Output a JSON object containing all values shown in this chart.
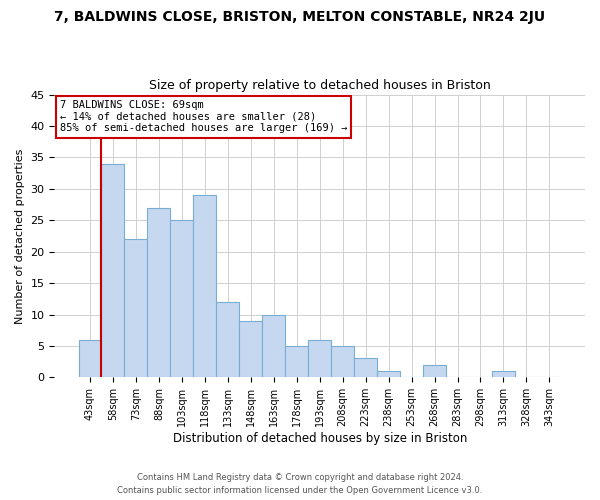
{
  "title_line1": "7, BALDWINS CLOSE, BRISTON, MELTON CONSTABLE, NR24 2JU",
  "title_line2": "Size of property relative to detached houses in Briston",
  "xlabel": "Distribution of detached houses by size in Briston",
  "ylabel": "Number of detached properties",
  "bar_labels": [
    "43sqm",
    "58sqm",
    "73sqm",
    "88sqm",
    "103sqm",
    "118sqm",
    "133sqm",
    "148sqm",
    "163sqm",
    "178sqm",
    "193sqm",
    "208sqm",
    "223sqm",
    "238sqm",
    "253sqm",
    "268sqm",
    "283sqm",
    "298sqm",
    "313sqm",
    "328sqm",
    "343sqm"
  ],
  "bar_values": [
    6,
    34,
    22,
    27,
    25,
    29,
    12,
    9,
    10,
    5,
    6,
    5,
    3,
    1,
    0,
    2,
    0,
    0,
    1,
    0,
    0
  ],
  "bar_color": "#c5d8f0",
  "bar_edge_color": "#7aadd4",
  "ylim": [
    0,
    45
  ],
  "yticks": [
    0,
    5,
    10,
    15,
    20,
    25,
    30,
    35,
    40,
    45
  ],
  "red_line_x": 0.5,
  "annotation_title": "7 BALDWINS CLOSE: 69sqm",
  "annotation_line1": "← 14% of detached houses are smaller (28)",
  "annotation_line2": "85% of semi-detached houses are larger (169) →",
  "red_line_color": "#cc0000",
  "footnote_line1": "Contains HM Land Registry data © Crown copyright and database right 2024.",
  "footnote_line2": "Contains public sector information licensed under the Open Government Licence v3.0.",
  "background_color": "#ffffff",
  "grid_color": "#d0d0d0"
}
